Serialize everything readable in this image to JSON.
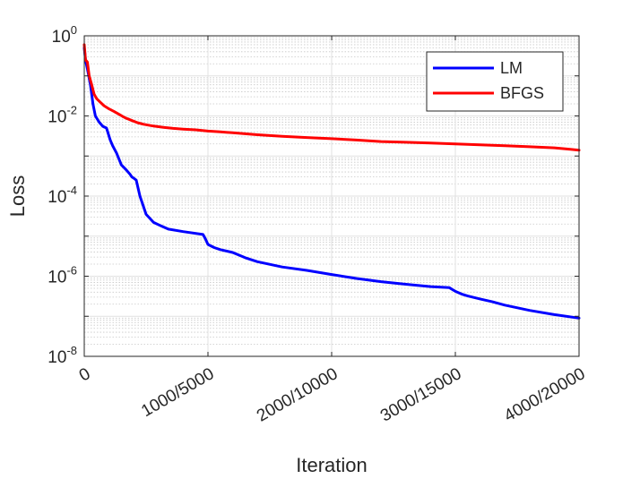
{
  "chart_data": {
    "type": "line",
    "title": "",
    "xlabel": "Iteration",
    "ylabel": "Loss",
    "xlim": [
      0,
      4000
    ],
    "ylim": [
      1e-08,
      1
    ],
    "yscale": "log",
    "grid": true,
    "minor_grid": true,
    "legend_position": "top-right",
    "x_tick_values": [
      0,
      1000,
      2000,
      3000,
      4000
    ],
    "x_tick_labels": [
      "0",
      "1000/5000",
      "2000/10000",
      "3000/15000",
      "4000/20000"
    ],
    "y_ticks": [
      {
        "value": 1,
        "base": "10",
        "exp": "0"
      },
      {
        "value": 0.01,
        "base": "10",
        "exp": "-2"
      },
      {
        "value": 0.0001,
        "base": "10",
        "exp": "-4"
      },
      {
        "value": 1e-06,
        "base": "10",
        "exp": "-6"
      },
      {
        "value": 1e-08,
        "base": "10",
        "exp": "-8"
      }
    ],
    "series": [
      {
        "name": "LM",
        "color": "#0000ff",
        "x": [
          0,
          10,
          25,
          50,
          70,
          90,
          120,
          150,
          180,
          210,
          230,
          260,
          300,
          340,
          370,
          385,
          400,
          420,
          450,
          500,
          560,
          620,
          680,
          800,
          960,
          980,
          1000,
          1050,
          1100,
          1200,
          1300,
          1400,
          1600,
          1800,
          2000,
          2200,
          2400,
          2600,
          2800,
          2950,
          3000,
          3050,
          3100,
          3200,
          3300,
          3400,
          3600,
          3800,
          4000
        ],
        "y": [
          0.5,
          0.25,
          0.15,
          0.06,
          0.02,
          0.01,
          0.007,
          0.0055,
          0.005,
          0.0025,
          0.0018,
          0.0012,
          0.0006,
          0.00045,
          0.00035,
          0.0003,
          0.00028,
          0.00025,
          0.0001,
          3.5e-05,
          2.2e-05,
          1.8e-05,
          1.5e-05,
          1.3e-05,
          1.1e-05,
          8.5e-06,
          6.2e-06,
          5.2e-06,
          4.6e-06,
          3.9e-06,
          2.9e-06,
          2.3e-06,
          1.7e-06,
          1.4e-06,
          1.1e-06,
          8.8e-07,
          7.3e-07,
          6.3e-07,
          5.5e-07,
          5.2e-07,
          4.2e-07,
          3.6e-07,
          3.2e-07,
          2.7e-07,
          2.3e-07,
          1.9e-07,
          1.4e-07,
          1.1e-07,
          9e-08
        ]
      },
      {
        "name": "BFGS",
        "color": "#ff0000",
        "x": [
          0,
          10,
          25,
          40,
          60,
          80,
          100,
          130,
          160,
          200,
          240,
          280,
          330,
          380,
          430,
          480,
          560,
          640,
          720,
          800,
          900,
          1000,
          1100,
          1200,
          1400,
          1600,
          1800,
          2000,
          2200,
          2400,
          2600,
          2800,
          3000,
          3200,
          3400,
          3600,
          3800,
          3900,
          4000
        ],
        "y": [
          0.6,
          0.25,
          0.22,
          0.1,
          0.06,
          0.035,
          0.027,
          0.022,
          0.018,
          0.015,
          0.013,
          0.011,
          0.009,
          0.0078,
          0.0068,
          0.0062,
          0.0056,
          0.0052,
          0.0049,
          0.0047,
          0.0045,
          0.0042,
          0.004,
          0.0038,
          0.0034,
          0.0031,
          0.0029,
          0.0027,
          0.0025,
          0.0023,
          0.0022,
          0.0021,
          0.002,
          0.0019,
          0.0018,
          0.0017,
          0.0016,
          0.0015,
          0.0014
        ]
      }
    ]
  }
}
